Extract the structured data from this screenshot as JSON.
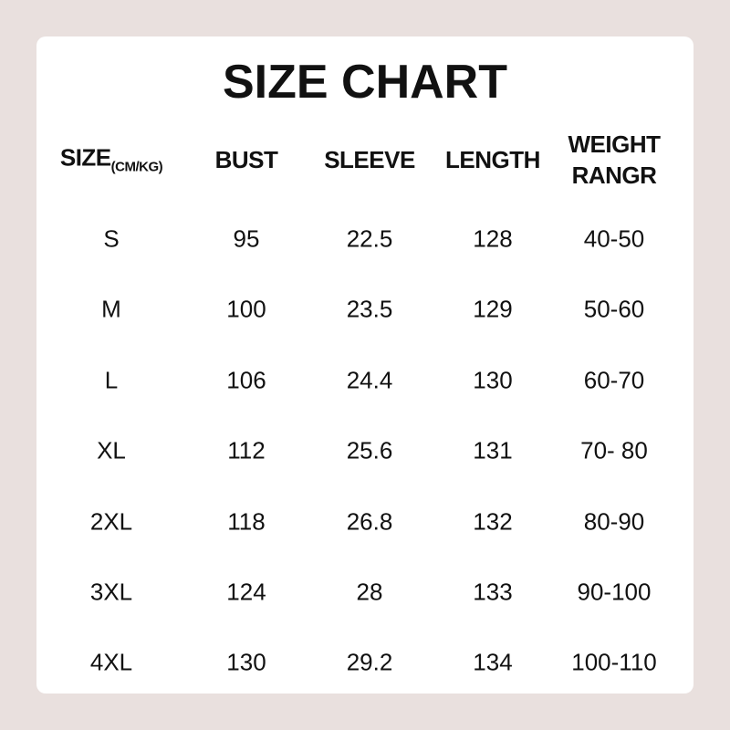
{
  "title": "SIZE CHART",
  "headers": {
    "size": "SIZE",
    "size_unit": "(CM/KG)",
    "bust": "BUST",
    "sleeve": "SLEEVE",
    "length": "LENGTH",
    "weight_line1": "WEIGHT",
    "weight_line2": "RANGR"
  },
  "rows": [
    [
      "S",
      "95",
      "22.5",
      "128",
      "40-50"
    ],
    [
      "M",
      "100",
      "23.5",
      "129",
      "50-60"
    ],
    [
      "L",
      "106",
      "24.4",
      "130",
      "60-70"
    ],
    [
      "XL",
      "112",
      "25.6",
      "131",
      "70- 80"
    ],
    [
      "2XL",
      "118",
      "26.8",
      "132",
      "80-90"
    ],
    [
      "3XL",
      "124",
      "28",
      "133",
      "90-100"
    ],
    [
      "4XL",
      "130",
      "29.2",
      "134",
      "100-110"
    ]
  ]
}
